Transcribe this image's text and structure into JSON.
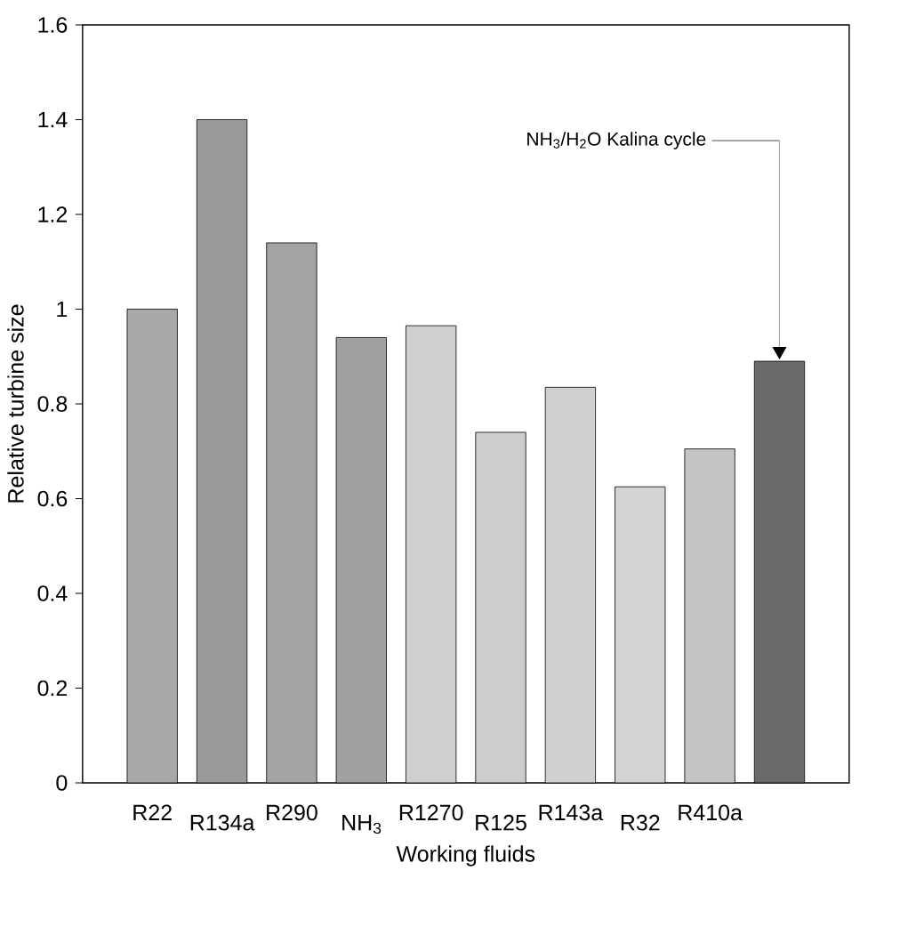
{
  "chart_data": {
    "type": "bar",
    "xlabel": "Working fluids",
    "ylabel": "Relative turbine size",
    "categories": [
      "R22",
      "R134a",
      "R290",
      "NH$_{3}$",
      "R1270",
      "R125",
      "R143a",
      "R32",
      "R410a",
      null
    ],
    "values": [
      1.0,
      1.4,
      1.14,
      0.94,
      0.965,
      0.74,
      0.835,
      0.625,
      0.705,
      0.89
    ],
    "colors": [
      "#a8a8a8",
      "#9a9a9a",
      "#a4a4a4",
      "#a0a0a0",
      "#cfcfcf",
      "#cdcdcd",
      "#d0d0d0",
      "#d3d3d3",
      "#c4c4c4",
      "#6a6a6a"
    ],
    "ylim": [
      0,
      1.6
    ],
    "yticks": [
      0,
      0.2,
      0.4,
      0.6,
      0.8,
      1,
      1.2,
      1.4,
      1.6
    ],
    "annotations": [
      "NH$_{3}$/H$_{2}$O Kalina cycle"
    ]
  }
}
